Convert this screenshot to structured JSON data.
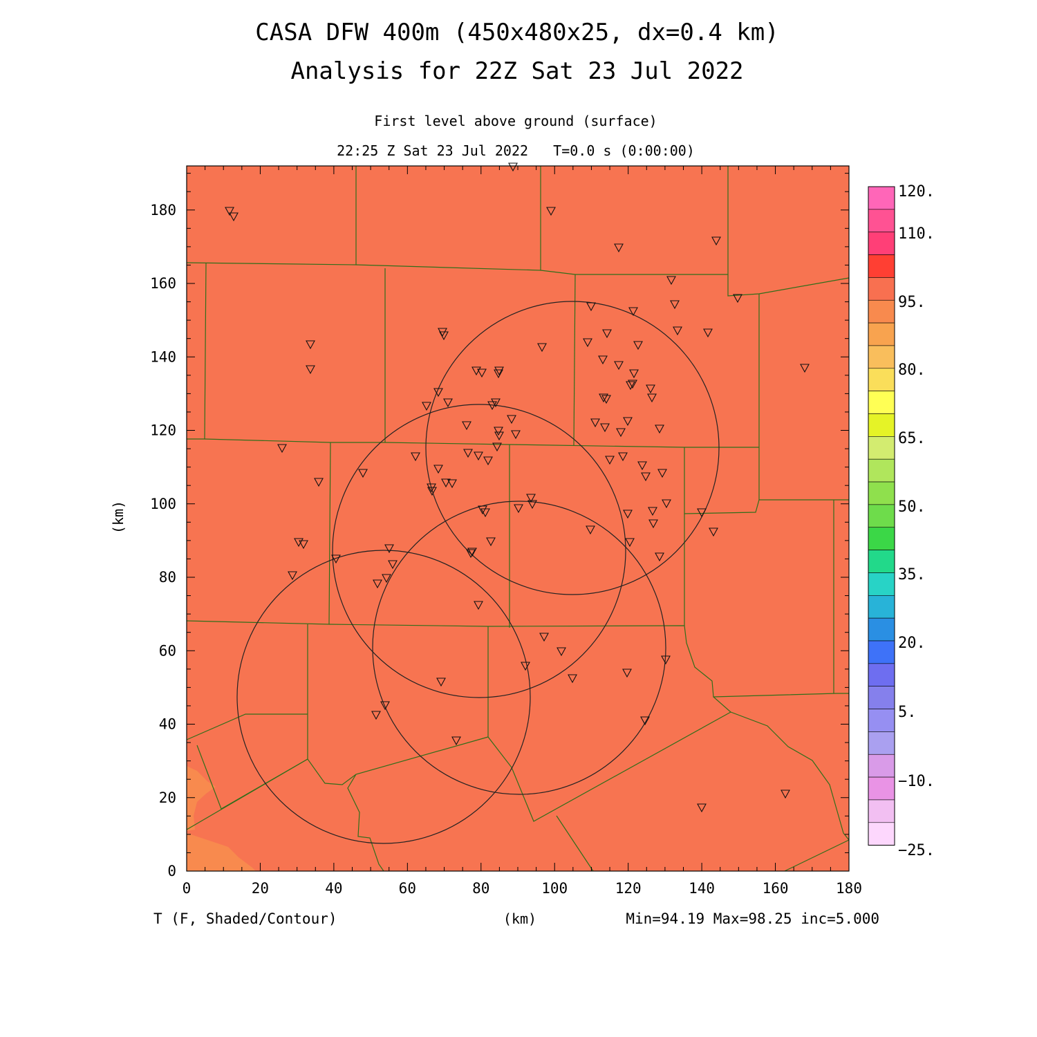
{
  "title_line1": "CASA DFW 400m (450x480x25, dx=0.4 km)",
  "title_line2": "Analysis for 22Z Sat 23 Jul 2022",
  "subtitle_level": "First level above ground (surface)",
  "subtitle_time": "22:25 Z Sat 23 Jul 2022   T=0.0 s (0:00:00)",
  "y_axis_label": "(km)",
  "x_axis_label": "(km)",
  "field_label": "T (F, Shaded/Contour)",
  "stats": "Min=94.19 Max=98.25 inc=5.000",
  "x_ticks": [
    "0",
    "20",
    "40",
    "60",
    "80",
    "100",
    "120",
    "140",
    "160",
    "180"
  ],
  "y_ticks": [
    "0",
    "20",
    "40",
    "60",
    "80",
    "100",
    "120",
    "140",
    "160",
    "180"
  ],
  "colorbar": {
    "labels": [
      "120.",
      "110.",
      "95.",
      "80.",
      "65.",
      "50.",
      "35.",
      "20.",
      "5.",
      "−10.",
      "−25."
    ],
    "colors": [
      "#ff66b8",
      "#ff5293",
      "#ff3f77",
      "#ff3f33",
      "#f87050",
      "#f88a4e",
      "#f8a34f",
      "#f9be5c",
      "#fade5a",
      "#ffff55",
      "#e5f327",
      "#d3ec70",
      "#b0e65c",
      "#8fe04d",
      "#6edc4b",
      "#3bd747",
      "#22d98a",
      "#28d3c6",
      "#28b3d8",
      "#2a8fe3",
      "#3e72f8",
      "#6e6ef0",
      "#8580ec",
      "#968ff2",
      "#aaa0f0",
      "#d99be8",
      "#e993e5",
      "#f2bff2",
      "#fdd7fd"
    ]
  },
  "map": {
    "fill_color": "#f77451",
    "warm_patch_color": "#f88a4e",
    "boundary_color": "#2f6e1a"
  }
}
